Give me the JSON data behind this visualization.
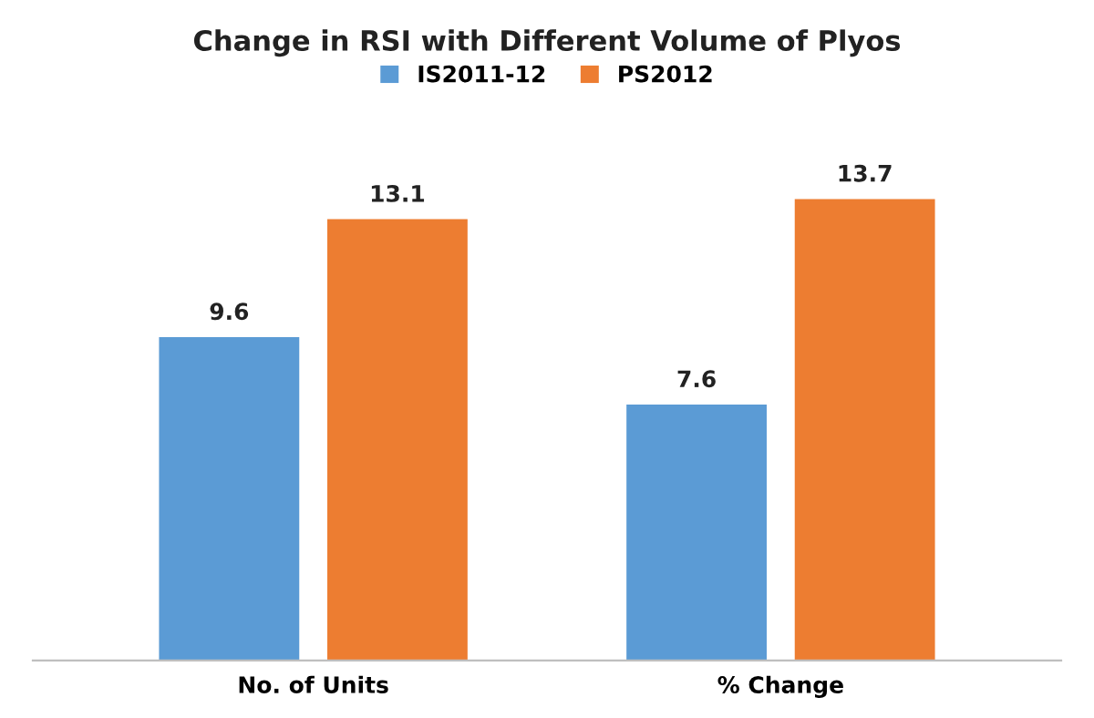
{
  "chart_data": {
    "type": "bar",
    "title": "Change in RSI with Different Volume of Plyos",
    "categories": [
      "No. of Units",
      "% Change"
    ],
    "series": [
      {
        "name": "IS2011-12",
        "color": "#5b9bd5",
        "values": [
          9.6,
          7.6
        ]
      },
      {
        "name": "PS2012",
        "color": "#ed7d31",
        "values": [
          13.1,
          13.7
        ]
      }
    ],
    "data_labels": true,
    "legend": "top",
    "tick_labels": "x"
  }
}
